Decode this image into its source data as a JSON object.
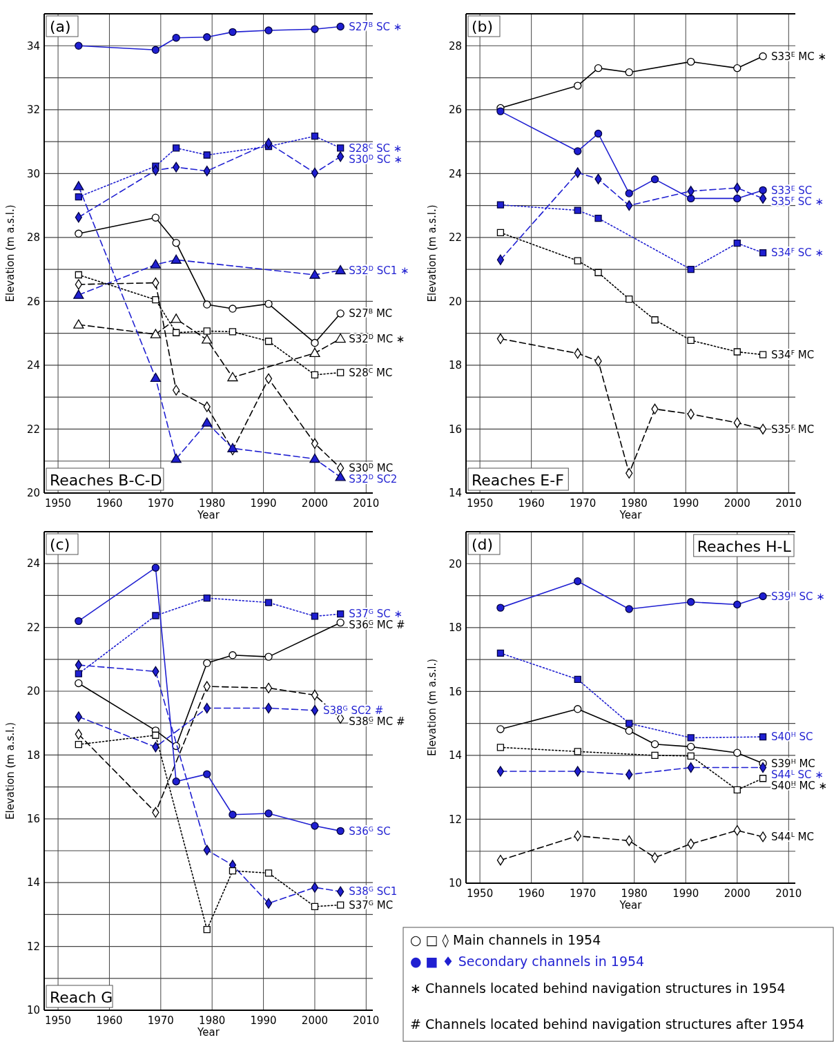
{
  "chart_data": [
    {
      "type": "line",
      "title": "(a)",
      "subtitle": "Reaches B-C-D",
      "xlabel": "Year",
      "ylabel": "Elevation (m a.s.l.)",
      "xlim": [
        1947.3,
        2011.3
      ],
      "ylim": [
        20,
        35
      ],
      "xticks": [
        1950,
        1960,
        1970,
        1980,
        1990,
        2000,
        2010
      ],
      "yticks": [
        20,
        {
          "value": 21,
          "label": null
        },
        22,
        {
          "value": 23,
          "label": null
        },
        24,
        {
          "value": 25,
          "label": null
        },
        26,
        {
          "value": 27,
          "label": null
        },
        28,
        {
          "value": 29,
          "label": null
        },
        30,
        {
          "value": 31,
          "label": null
        },
        32,
        {
          "value": 33,
          "label": null
        },
        34,
        {
          "value": 35,
          "label": null
        }
      ],
      "grid": true,
      "series": [
        {
          "name": "S27$^{B}$ SC ∗",
          "color": "#1f1fd1",
          "line_style": "solid",
          "marker": "circle",
          "x": [
            1954,
            1969,
            1973,
            1979,
            1984,
            1991,
            2000,
            2005
          ],
          "values": [
            34.0,
            33.87,
            34.25,
            34.27,
            34.43,
            34.48,
            34.52,
            34.6
          ]
        },
        {
          "name": "S28$^{C}$ SC ∗",
          "color": "#1f1fd1",
          "line_style": "dotted",
          "marker": "square",
          "x": [
            1954,
            1969,
            1973,
            1979,
            1991,
            2000,
            2005
          ],
          "values": [
            29.27,
            30.23,
            30.8,
            30.58,
            30.85,
            31.17,
            30.8
          ]
        },
        {
          "name": "S30$^{D}$ SC ∗",
          "color": "#1f1fd1",
          "line_style": "dashed",
          "marker": "diamond",
          "x": [
            1954,
            1969,
            1973,
            1979,
            1991,
            2000,
            2005
          ],
          "values": [
            28.63,
            30.1,
            30.2,
            30.08,
            30.95,
            30.02,
            30.53
          ]
        },
        {
          "name": "S32$^{D}$ SC1 ∗",
          "color": "#1f1fd1",
          "line_style": "dashed",
          "marker": "triangle",
          "x": [
            1954,
            1969,
            1973,
            2000,
            2005
          ],
          "values": [
            26.2,
            27.15,
            27.3,
            26.83,
            26.97
          ]
        },
        {
          "name": "S27$^{B}$ MC",
          "color": "#000000",
          "line_style": "solid",
          "marker": "circle",
          "x": [
            1954,
            1969,
            1973,
            1979,
            1984,
            1991,
            2000,
            2005
          ],
          "values": [
            28.12,
            28.62,
            27.83,
            25.9,
            25.77,
            25.92,
            24.7,
            25.62
          ]
        },
        {
          "name": "S32$^{D}$ MC ∗",
          "color": "#000000",
          "line_style": "dashed",
          "marker": "triangle",
          "x": [
            1954,
            1969,
            1973,
            1979,
            1984,
            2000,
            2005
          ],
          "values": [
            25.27,
            24.97,
            25.45,
            24.8,
            23.62,
            24.38,
            24.83
          ]
        },
        {
          "name": "S28$^{C}$ MC",
          "color": "#000000",
          "line_style": "dotted",
          "marker": "square",
          "x": [
            1954,
            1969,
            1973,
            1979,
            1984,
            1991,
            2000,
            2005
          ],
          "values": [
            26.83,
            26.05,
            25.02,
            25.07,
            25.05,
            24.75,
            23.7,
            23.77
          ]
        },
        {
          "name": "S30$^{D}$ MC",
          "color": "#000000",
          "line_style": "dashed",
          "marker": "diamond",
          "x": [
            1954,
            1969,
            1973,
            1979,
            1984,
            1991,
            2000,
            2005
          ],
          "values": [
            26.53,
            26.58,
            23.22,
            22.7,
            21.35,
            23.58,
            21.55,
            20.78
          ]
        },
        {
          "name": "S32$^{D}$ SC2",
          "color": "#1f1fd1",
          "line_style": "dashed",
          "marker": "triangle",
          "x": [
            1954,
            1969,
            1973,
            1979,
            1984,
            2000,
            2005
          ],
          "values": [
            29.6,
            23.6,
            21.07,
            22.2,
            21.4,
            21.07,
            20.5
          ]
        }
      ]
    },
    {
      "type": "line",
      "title": "(b)",
      "subtitle": "Reaches E-F",
      "xlabel": "Year",
      "ylabel": "Elevation (m a.s.l.)",
      "xlim": [
        1947.3,
        2011.3
      ],
      "ylim": [
        14,
        29
      ],
      "xticks": [
        1950,
        1960,
        1970,
        1980,
        1990,
        2000,
        2010
      ],
      "yticks": [
        14,
        {
          "value": 15,
          "label": null
        },
        16,
        {
          "value": 17,
          "label": null
        },
        18,
        {
          "value": 19,
          "label": null
        },
        20,
        {
          "value": 21,
          "label": null
        },
        22,
        {
          "value": 23,
          "label": null
        },
        24,
        {
          "value": 25,
          "label": null
        },
        26,
        {
          "value": 27,
          "label": null
        },
        28,
        {
          "value": 29,
          "label": null
        }
      ],
      "grid": true,
      "series": [
        {
          "name": "S33$^{E}$ MC ∗",
          "color": "#000000",
          "line_style": "solid",
          "marker": "circle",
          "x": [
            1954,
            1969,
            1973,
            1979,
            1991,
            2000,
            2005
          ],
          "values": [
            26.05,
            26.75,
            27.3,
            27.17,
            27.5,
            27.3,
            27.67
          ]
        },
        {
          "name": "S33$^{E}$ SC",
          "color": "#1f1fd1",
          "line_style": "solid",
          "marker": "circle",
          "x": [
            1954,
            1969,
            1973,
            1979,
            1984,
            1991,
            2000,
            2005
          ],
          "values": [
            25.95,
            24.7,
            25.25,
            23.38,
            23.82,
            23.22,
            23.22,
            23.48
          ]
        },
        {
          "name": "S35$^{F}$ SC ∗",
          "color": "#1f1fd1",
          "line_style": "dashed",
          "marker": "diamond",
          "x": [
            1954,
            1969,
            1973,
            1979,
            1991,
            2000,
            2005
          ],
          "values": [
            21.3,
            24.03,
            23.83,
            23.0,
            23.45,
            23.55,
            23.22
          ]
        },
        {
          "name": "S34$^{F}$ SC ∗",
          "color": "#1f1fd1",
          "line_style": "dotted",
          "marker": "square",
          "x": [
            1954,
            1969,
            1973,
            1991,
            2000,
            2005
          ],
          "values": [
            23.02,
            22.85,
            22.6,
            21.0,
            21.82,
            21.52
          ]
        },
        {
          "name": "S34$^{F}$ MC",
          "color": "#000000",
          "line_style": "dotted",
          "marker": "square",
          "x": [
            1954,
            1969,
            1973,
            1979,
            1984,
            1991,
            2000,
            2005
          ],
          "values": [
            22.15,
            21.27,
            20.9,
            20.07,
            19.42,
            18.78,
            18.42,
            18.33
          ]
        },
        {
          "name": "S35$^{F}$ MC",
          "color": "#000000",
          "line_style": "dashed",
          "marker": "diamond",
          "x": [
            1954,
            1969,
            1973,
            1979,
            1984,
            1991,
            2000,
            2005
          ],
          "values": [
            18.83,
            18.37,
            18.13,
            14.62,
            16.63,
            16.47,
            16.2,
            16.0
          ]
        }
      ]
    },
    {
      "type": "line",
      "title": "(c)",
      "subtitle": "Reach G",
      "xlabel": "Year",
      "ylabel": "Elevation (m a.s.l.)",
      "xlim": [
        1947.3,
        2011.3
      ],
      "ylim": [
        10,
        25
      ],
      "xticks": [
        1950,
        1960,
        1970,
        1980,
        1990,
        2000,
        2010
      ],
      "yticks": [
        10,
        {
          "value": 11,
          "label": null
        },
        12,
        {
          "value": 13,
          "label": null
        },
        14,
        {
          "value": 15,
          "label": null
        },
        16,
        {
          "value": 17,
          "label": null
        },
        18,
        {
          "value": 19,
          "label": null
        },
        20,
        {
          "value": 21,
          "label": null
        },
        22,
        {
          "value": 23,
          "label": null
        },
        24,
        {
          "value": 25,
          "label": null
        }
      ],
      "grid": true,
      "series": [
        {
          "name": "S37$^{G}$ SC ∗",
          "color": "#1f1fd1",
          "line_style": "dotted",
          "marker": "square",
          "x": [
            1954,
            1969,
            1979,
            1991,
            2000,
            2005
          ],
          "values": [
            20.55,
            22.37,
            22.92,
            22.78,
            22.35,
            22.42
          ]
        },
        {
          "name": "S36$^{G}$ MC #",
          "color": "#000000",
          "line_style": "solid",
          "marker": "circle",
          "x": [
            1954,
            1969,
            1973,
            1979,
            1984,
            1991,
            2005
          ],
          "values": [
            20.25,
            18.77,
            18.28,
            20.88,
            21.13,
            21.08,
            22.15
          ]
        },
        {
          "name": "S38$^{G}$ SC2 #",
          "color": "#1f1fd1",
          "line_style": "dashed",
          "marker": "diamond",
          "x": [
            1954,
            1969,
            1979,
            1991,
            2000
          ],
          "values": [
            19.2,
            18.25,
            19.47,
            19.47,
            19.4
          ]
        },
        {
          "name": "S38$^{G}$ MC #",
          "color": "#000000",
          "line_style": "dashed",
          "marker": "diamond",
          "x": [
            1954,
            1969,
            1979,
            1991,
            2000,
            2005
          ],
          "values": [
            18.65,
            16.2,
            20.15,
            20.1,
            19.88,
            19.15
          ]
        },
        {
          "name": "S36$^{G}$ SC",
          "color": "#1f1fd1",
          "line_style": "solid",
          "marker": "circle",
          "x": [
            1954,
            1969,
            1973,
            1979,
            1984,
            1991,
            2000,
            2005
          ],
          "values": [
            22.2,
            23.87,
            17.17,
            17.4,
            16.13,
            16.17,
            15.78,
            15.62
          ]
        },
        {
          "name": "S38$^{G}$ SC1",
          "color": "#1f1fd1",
          "line_style": "dashed",
          "marker": "diamond",
          "x": [
            1954,
            1969,
            1979,
            1984,
            1991,
            2000,
            2005
          ],
          "values": [
            20.82,
            20.62,
            15.02,
            14.55,
            13.35,
            13.85,
            13.72
          ]
        },
        {
          "name": "S37$^{G}$ MC",
          "color": "#000000",
          "line_style": "dotted",
          "marker": "square",
          "x": [
            1954,
            1969,
            1979,
            1984,
            1991,
            2000,
            2005
          ],
          "values": [
            18.33,
            18.62,
            12.53,
            14.37,
            14.3,
            13.25,
            13.3
          ]
        }
      ]
    },
    {
      "type": "line",
      "title": "(d)",
      "subtitle": "Reaches H-L",
      "xlabel": "Year",
      "ylabel": "Elevation (m a.s.l.)",
      "xlim": [
        1947.3,
        2011.3
      ],
      "ylim": [
        10,
        21
      ],
      "xticks": [
        1950,
        1960,
        1970,
        1980,
        1990,
        2000,
        2010
      ],
      "yticks": [
        10,
        {
          "value": 11,
          "label": null
        },
        12,
        {
          "value": 13,
          "label": null
        },
        14,
        {
          "value": 15,
          "label": null
        },
        16,
        {
          "value": 17,
          "label": null
        },
        18,
        {
          "value": 19,
          "label": null
        },
        20,
        {
          "value": 21,
          "label": null
        }
      ],
      "grid": true,
      "annotations": [
        "○ □ ◊ Main channels in 1954",
        "● ■ ♦ Secondary channels in 1954",
        "∗ Channels located behind navigation structures in 1954",
        "# Channels located behind navigation structures after 1954"
      ],
      "series": [
        {
          "name": "S39$^{H}$ SC ∗",
          "color": "#1f1fd1",
          "line_style": "solid",
          "marker": "circle",
          "x": [
            1954,
            1969,
            1979,
            1991,
            2000,
            2005
          ],
          "values": [
            18.62,
            19.45,
            18.58,
            18.8,
            18.72,
            18.98
          ]
        },
        {
          "name": "S40$^{H}$ SC",
          "color": "#1f1fd1",
          "line_style": "dotted",
          "marker": "square",
          "x": [
            1954,
            1969,
            1979,
            1991,
            2005
          ],
          "values": [
            17.2,
            16.38,
            15.0,
            14.55,
            14.58
          ]
        },
        {
          "name": "S39$^{H}$ MC",
          "color": "#000000",
          "line_style": "solid",
          "marker": "circle",
          "x": [
            1954,
            1969,
            1979,
            1984,
            1991,
            2000,
            2005
          ],
          "values": [
            14.82,
            15.45,
            14.77,
            14.35,
            14.27,
            14.08,
            13.75
          ]
        },
        {
          "name": "S44$^{L}$ SC ∗",
          "color": "#1f1fd1",
          "line_style": "dashed",
          "marker": "diamond",
          "x": [
            1954,
            1969,
            1979,
            1991,
            2005
          ],
          "values": [
            13.5,
            13.5,
            13.4,
            13.62,
            13.62
          ]
        },
        {
          "name": "S40$^{H}$ MC ∗",
          "color": "#000000",
          "line_style": "dotted",
          "marker": "square",
          "x": [
            1954,
            1969,
            1984,
            1991,
            2000,
            2005
          ],
          "values": [
            14.25,
            14.12,
            14.0,
            13.98,
            12.92,
            13.28
          ]
        },
        {
          "name": "S44$^{L}$ MC",
          "color": "#000000",
          "line_style": "dashed",
          "marker": "diamond",
          "x": [
            1954,
            1969,
            1979,
            1984,
            1991,
            2000,
            2005
          ],
          "values": [
            10.72,
            11.48,
            11.33,
            10.8,
            11.23,
            11.65,
            11.45
          ]
        }
      ]
    }
  ]
}
